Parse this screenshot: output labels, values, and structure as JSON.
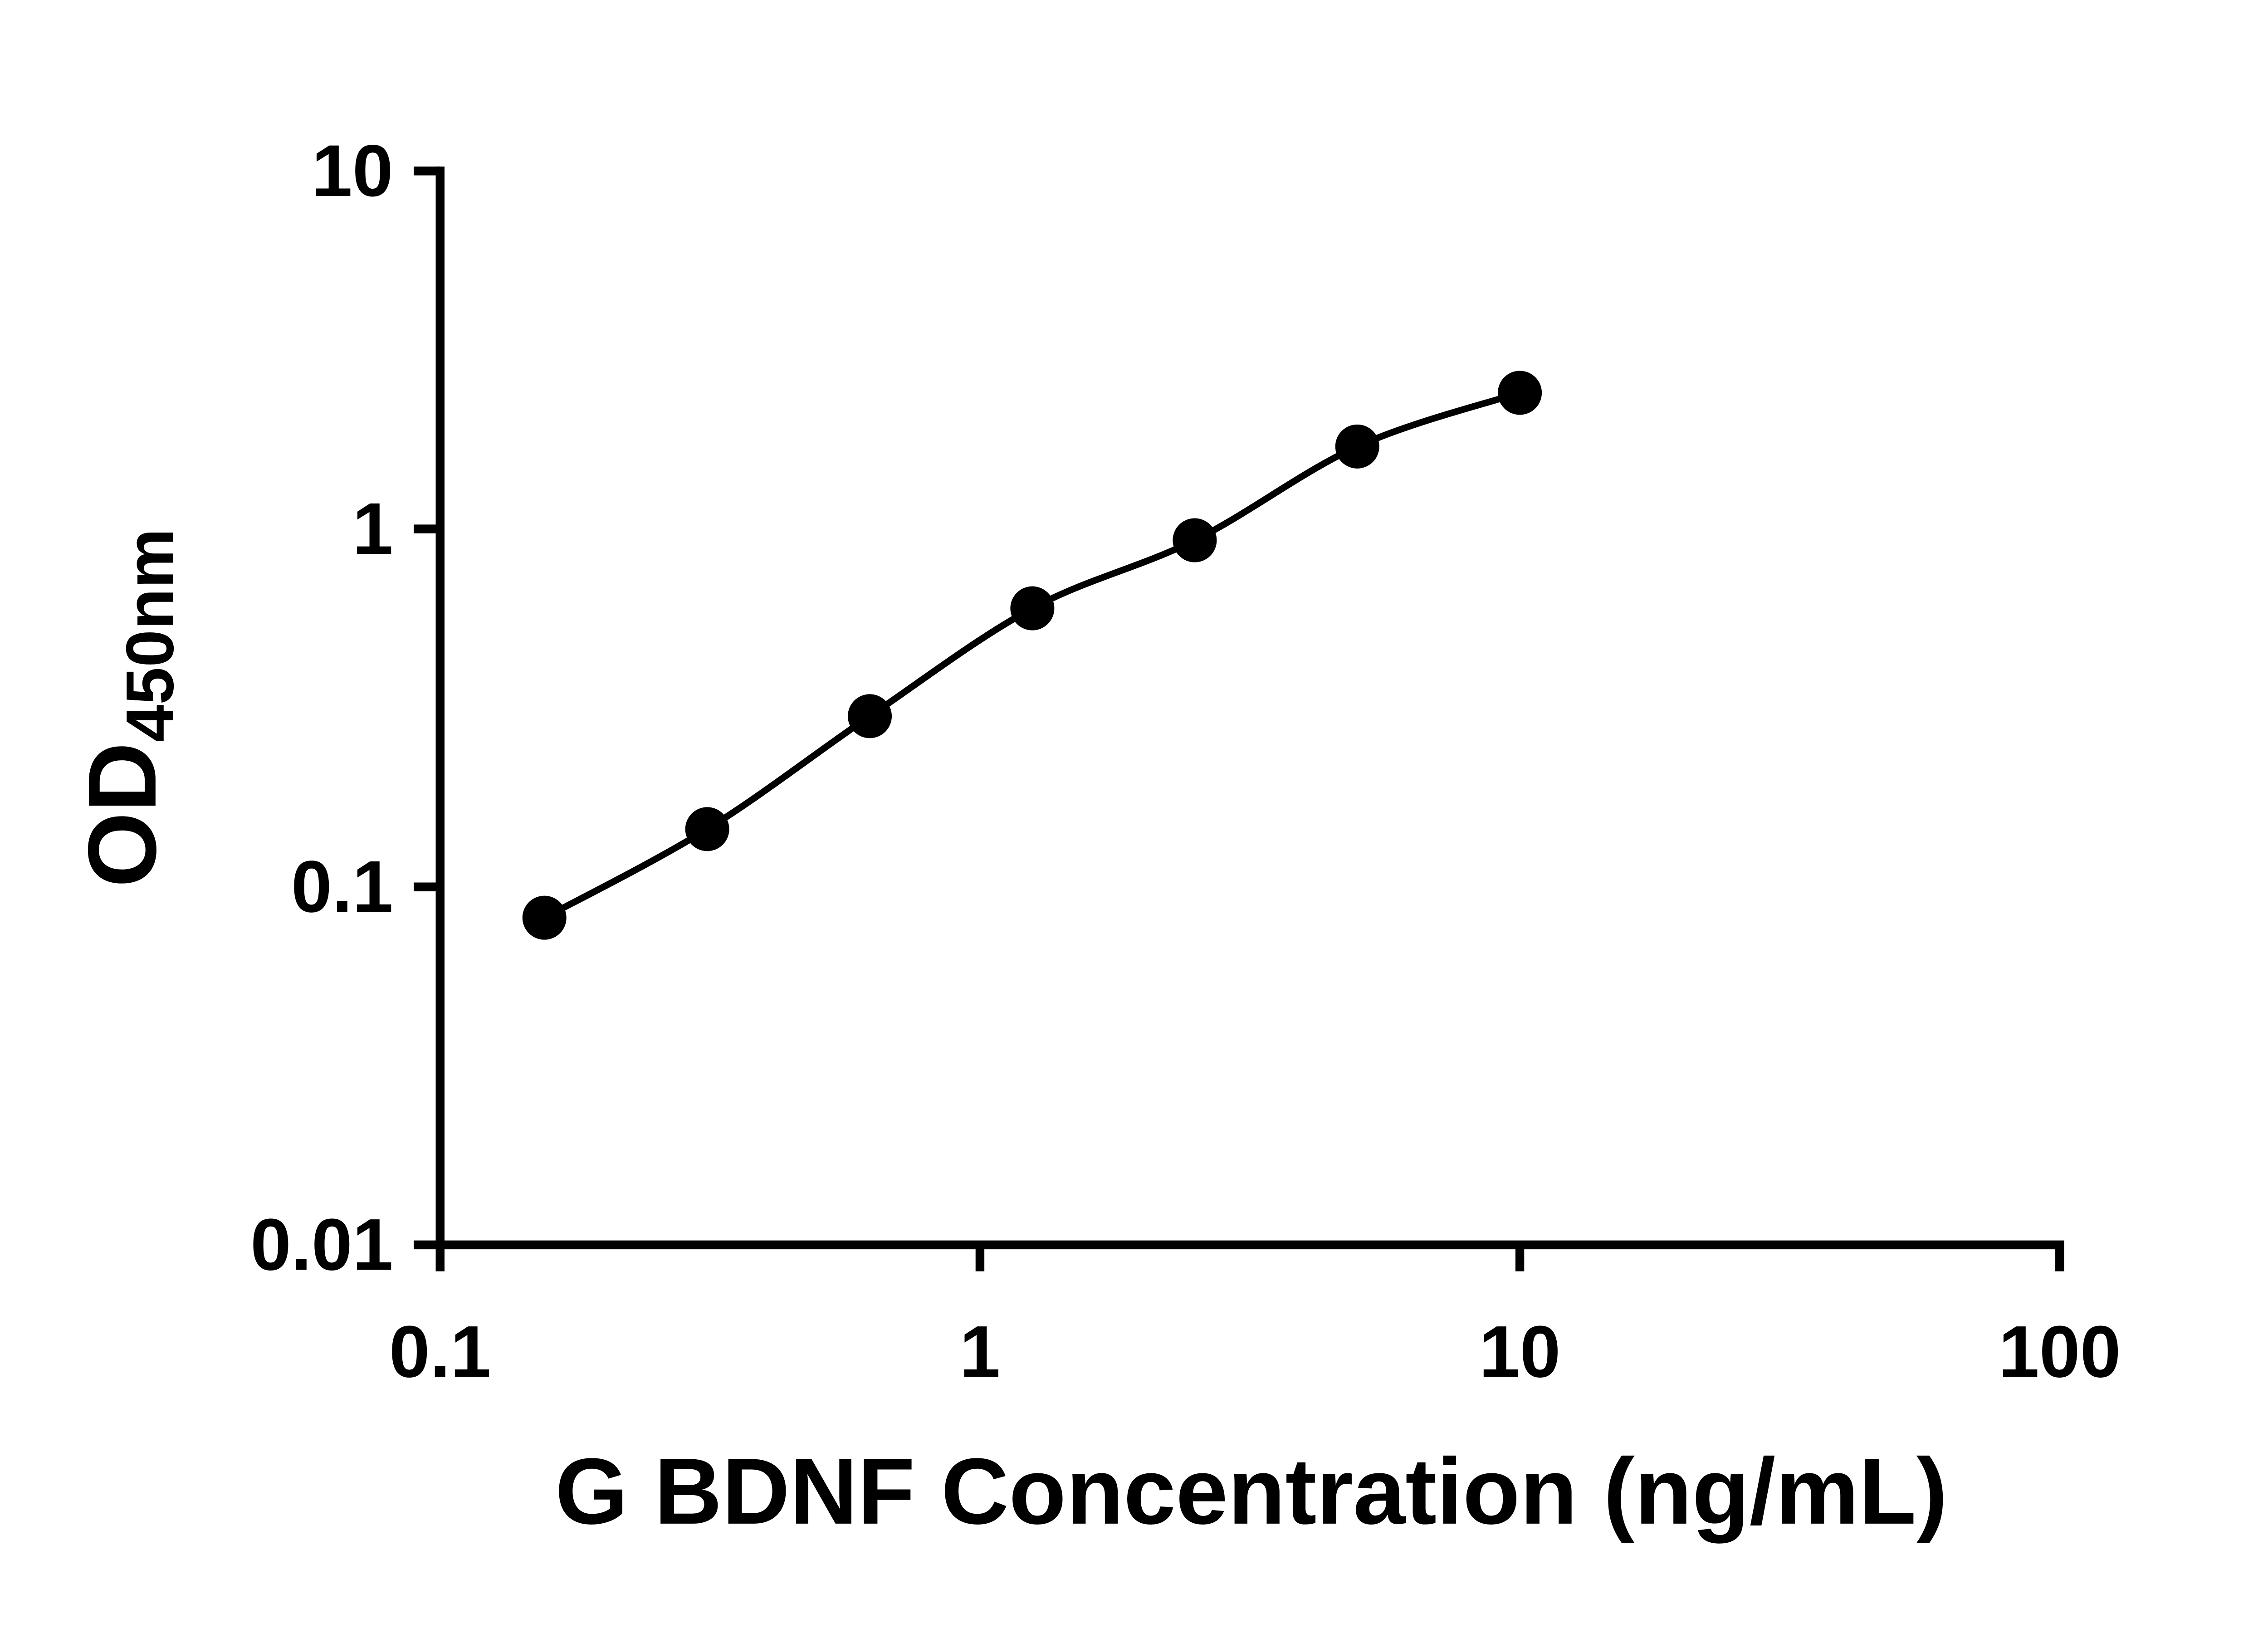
{
  "chart_data": {
    "type": "line",
    "title": "",
    "x": [
      0.156,
      0.3125,
      0.625,
      1.25,
      2.5,
      5,
      10
    ],
    "y": [
      0.082,
      0.145,
      0.3,
      0.6,
      0.93,
      1.7,
      2.4
    ],
    "xlabel": "G BDNF Concentration (ng/mL)",
    "ylabel_main": "OD",
    "ylabel_sub": "450nm",
    "xscale": "log",
    "yscale": "log",
    "xlim": [
      0.1,
      100
    ],
    "ylim": [
      0.01,
      10
    ],
    "x_ticks": [
      "0.1",
      "1",
      "10",
      "100"
    ],
    "y_ticks": [
      "0.01",
      "0.1",
      "1",
      "10"
    ],
    "grid": false,
    "legend": "none",
    "marker_shape": "filled-circle",
    "marker_color": "#000000",
    "line_color": "#000000",
    "axis_color": "#000000",
    "background_color": "#ffffff"
  }
}
